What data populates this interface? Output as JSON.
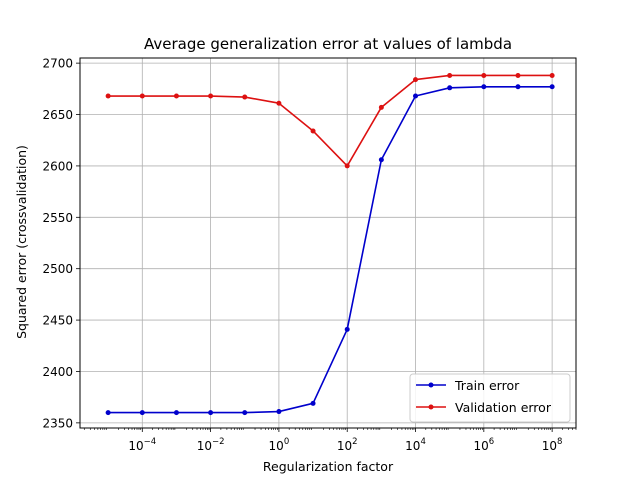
{
  "chart_data": {
    "type": "line",
    "title": "Average generalization error at values of lambda",
    "xlabel": "Regularization factor",
    "ylabel": "Squared error (crossvalidation)",
    "xscale": "log",
    "xlim": [
      1.5e-06,
      500000000.0
    ],
    "ylim": [
      2345,
      2705
    ],
    "x": [
      1e-05,
      0.0001,
      0.001,
      0.01,
      0.1,
      1.0,
      10.0,
      100.0,
      1000.0,
      10000.0,
      100000.0,
      1000000.0,
      10000000.0,
      100000000.0
    ],
    "xtick_values": [
      0.0001,
      0.01,
      1.0,
      100.0,
      10000.0,
      1000000.0,
      100000000.0
    ],
    "xticks": [
      {
        "base": "10",
        "exp": "−4"
      },
      {
        "base": "10",
        "exp": "−2"
      },
      {
        "base": "10",
        "exp": "0"
      },
      {
        "base": "10",
        "exp": "2"
      },
      {
        "base": "10",
        "exp": "4"
      },
      {
        "base": "10",
        "exp": "6"
      },
      {
        "base": "10",
        "exp": "8"
      }
    ],
    "yticks": [
      2350,
      2400,
      2450,
      2500,
      2550,
      2600,
      2650,
      2700
    ],
    "grid": true,
    "legend_position": "bottom-right",
    "series": [
      {
        "name": "Train error",
        "color": "#0000cc",
        "values": [
          2360,
          2360,
          2360,
          2360,
          2360,
          2361,
          2369,
          2441,
          2606,
          2668,
          2676,
          2677,
          2677,
          2677
        ]
      },
      {
        "name": "Validation error",
        "color": "#dd1111",
        "values": [
          2668,
          2668,
          2668,
          2668,
          2667,
          2661,
          2634,
          2600,
          2657,
          2684,
          2688,
          2688,
          2688,
          2688
        ]
      }
    ]
  }
}
